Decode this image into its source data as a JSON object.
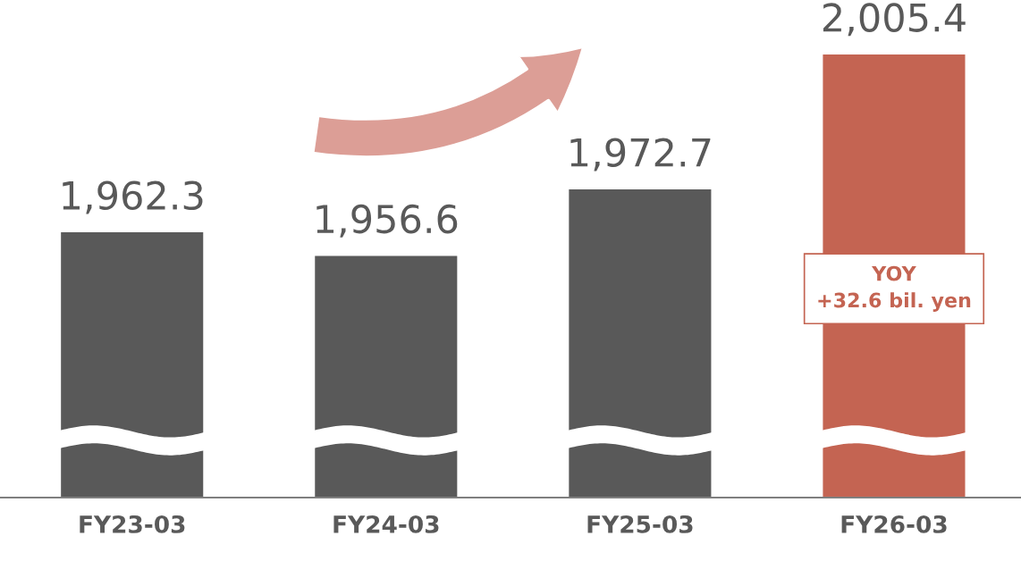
{
  "chart_data": {
    "type": "bar",
    "categories": [
      "FY23-03",
      "FY24-03",
      "FY25-03",
      "FY26-03"
    ],
    "values": [
      1962.3,
      1956.6,
      1972.7,
      2005.4
    ],
    "value_labels": [
      "1,962.3",
      "1,956.6",
      "1,972.7",
      "2,005.4"
    ],
    "colors": [
      "#595959",
      "#595959",
      "#595959",
      "#c46452"
    ],
    "tick_labels": "x",
    "annotations": [
      "YOY\n+32.6 bil. yen"
    ]
  }
}
